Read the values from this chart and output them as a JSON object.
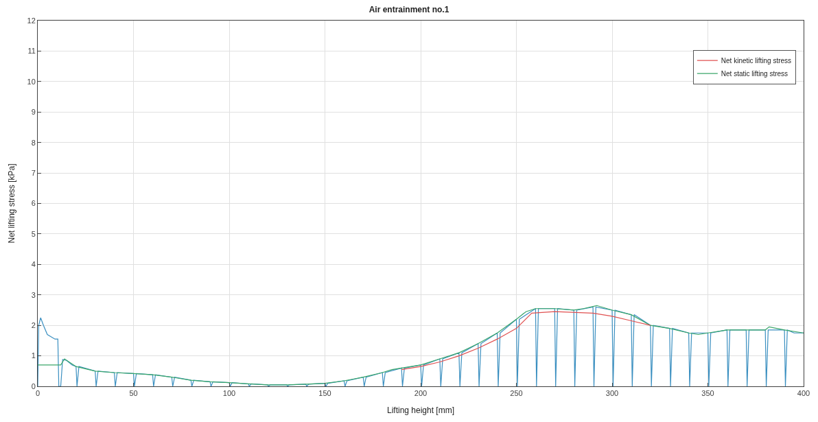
{
  "chart_data": {
    "type": "line",
    "title": "Air entrainment no.1",
    "xlabel": "Lifting height [mm]",
    "ylabel": "Net lifting stress [kPa]",
    "xlim": [
      0,
      400
    ],
    "xticks": [
      0,
      50,
      100,
      150,
      200,
      250,
      300,
      350,
      400
    ],
    "ylim": [
      0,
      12
    ],
    "yticks": [
      0,
      1,
      2,
      3,
      4,
      5,
      6,
      7,
      8,
      9,
      10,
      11,
      12
    ],
    "grid": true,
    "legend": "top right",
    "marker": "none",
    "line_style": "solid",
    "series": [
      {
        "color": "#3a8fc0",
        "x": [
          0,
          0.5,
          1.5,
          3,
          5,
          9,
          10.5,
          11,
          12,
          13,
          15,
          18,
          20,
          20.5,
          21.5,
          30,
          30.5,
          31.5,
          40,
          40.5,
          41.5,
          50,
          50.5,
          51.5,
          60,
          60.5,
          61.5,
          70,
          70.5,
          71.5,
          80,
          80.5,
          81.5,
          90,
          90.5,
          91.5,
          100,
          100.5,
          101.5,
          110,
          110.5,
          111.5,
          120,
          120.5,
          121.5,
          130,
          130.5,
          131.5,
          140,
          140.5,
          141.5,
          150,
          150.5,
          151.5,
          160,
          160.5,
          161.5,
          170,
          170.5,
          171.5,
          180,
          180.5,
          181.5,
          190,
          190.5,
          191.5,
          200,
          200.5,
          201.5,
          210,
          210.5,
          211.5,
          220,
          220.5,
          221.5,
          230,
          230.5,
          231.5,
          240,
          240.5,
          241.5,
          250,
          250.5,
          251.5,
          260,
          260.5,
          261.5,
          270,
          270.5,
          271.5,
          280,
          280.5,
          281.5,
          290,
          290.5,
          291.5,
          300,
          300.5,
          301.5,
          310,
          310.5,
          311.5,
          320,
          320.5,
          321.5,
          330,
          330.5,
          331.5,
          340,
          340.5,
          341.5,
          350,
          350.5,
          351.5,
          360,
          360.5,
          361.5,
          370,
          370.5,
          371.5,
          380,
          380.5,
          381.5,
          390,
          390.5,
          391.5,
          395,
          400
        ],
        "values": [
          0,
          2.0,
          2.25,
          2.0,
          1.7,
          1.55,
          1.55,
          0,
          0,
          0.88,
          0.85,
          0.7,
          0.65,
          0,
          0.65,
          0.5,
          0,
          0.5,
          0.45,
          0,
          0.45,
          0.42,
          0,
          0.42,
          0.38,
          0,
          0.38,
          0.3,
          0,
          0.3,
          0.2,
          0,
          0.2,
          0.15,
          0,
          0.15,
          0.12,
          0,
          0.12,
          0.08,
          0,
          0.08,
          0.05,
          0,
          0.05,
          0.05,
          0,
          0.05,
          0.07,
          0,
          0.07,
          0.1,
          0,
          0.1,
          0.18,
          0,
          0.18,
          0.3,
          0,
          0.3,
          0.45,
          0,
          0.45,
          0.6,
          0,
          0.6,
          0.7,
          0,
          0.7,
          0.9,
          0,
          0.9,
          1.1,
          0,
          1.1,
          1.4,
          0,
          1.4,
          1.75,
          0,
          1.75,
          2.2,
          0,
          2.2,
          2.55,
          0,
          2.55,
          2.55,
          0,
          2.55,
          2.5,
          0,
          2.5,
          2.6,
          0,
          2.6,
          2.5,
          0,
          2.5,
          2.35,
          0,
          2.35,
          2.0,
          0,
          2.0,
          1.9,
          0,
          1.9,
          1.75,
          0,
          1.75,
          1.75,
          0,
          1.75,
          1.85,
          0,
          1.85,
          1.85,
          0,
          1.85,
          1.85,
          0,
          1.85,
          1.85,
          0,
          1.85,
          1.75,
          1.75
        ]
      },
      {
        "name": "Net kinetic lifting stress",
        "color": "#e05050",
        "x": [
          190,
          200,
          210,
          220,
          230,
          240,
          250,
          258,
          270,
          290,
          300,
          310,
          320
        ],
        "values": [
          0.55,
          0.65,
          0.8,
          1.0,
          1.25,
          1.55,
          1.9,
          2.4,
          2.45,
          2.4,
          2.3,
          2.15,
          2.0
        ]
      },
      {
        "name": "Net static lifting stress",
        "color": "#3aa66a",
        "x": [
          0,
          12,
          14,
          20,
          30,
          40,
          50,
          60,
          70,
          80,
          90,
          100,
          110,
          120,
          130,
          140,
          150,
          160,
          170,
          180,
          185,
          190,
          200,
          210,
          220,
          230,
          240,
          250,
          255,
          260,
          270,
          280,
          285,
          292,
          300,
          310,
          320,
          330,
          340,
          345,
          350,
          360,
          370,
          380,
          382,
          390,
          400
        ],
        "values": [
          0.7,
          0.7,
          0.9,
          0.65,
          0.5,
          0.45,
          0.42,
          0.38,
          0.3,
          0.2,
          0.15,
          0.12,
          0.08,
          0.05,
          0.05,
          0.07,
          0.1,
          0.18,
          0.3,
          0.45,
          0.55,
          0.6,
          0.7,
          0.9,
          1.1,
          1.4,
          1.75,
          2.2,
          2.45,
          2.55,
          2.55,
          2.5,
          2.55,
          2.65,
          2.5,
          2.35,
          2.0,
          1.9,
          1.75,
          1.7,
          1.75,
          1.85,
          1.85,
          1.85,
          1.95,
          1.85,
          1.75
        ]
      }
    ]
  }
}
